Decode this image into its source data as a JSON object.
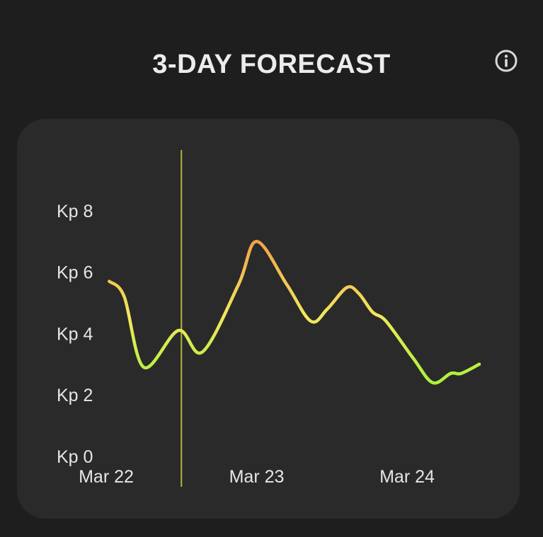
{
  "header": {
    "title": "3-DAY FORECAST",
    "info_icon": "info-icon"
  },
  "chart_data": {
    "type": "line",
    "title": "",
    "xlabel": "",
    "ylabel": "",
    "ylim": [
      0,
      9
    ],
    "y_ticks": [
      0,
      2,
      4,
      6,
      8
    ],
    "y_tick_labels": [
      "Kp 0",
      "Kp 2",
      "Kp 4",
      "Kp 6",
      "Kp 8"
    ],
    "x_tick_labels": [
      "Mar 22",
      "Mar 23",
      "Mar 24"
    ],
    "x_unit": "days since Mar 22",
    "current_time_x": 0.5,
    "series": [
      {
        "values": [
          {
            "x": 0.02,
            "y": 5.7
          },
          {
            "x": 0.12,
            "y": 5.2
          },
          {
            "x": 0.25,
            "y": 2.9
          },
          {
            "x": 0.48,
            "y": 4.1
          },
          {
            "x": 0.64,
            "y": 3.4
          },
          {
            "x": 0.88,
            "y": 5.6
          },
          {
            "x": 1.0,
            "y": 7.0
          },
          {
            "x": 1.2,
            "y": 5.6
          },
          {
            "x": 1.36,
            "y": 4.4
          },
          {
            "x": 1.47,
            "y": 4.8
          },
          {
            "x": 1.6,
            "y": 5.5
          },
          {
            "x": 1.68,
            "y": 5.3
          },
          {
            "x": 1.77,
            "y": 4.7
          },
          {
            "x": 1.86,
            "y": 4.4
          },
          {
            "x": 2.04,
            "y": 3.2
          },
          {
            "x": 2.17,
            "y": 2.4
          },
          {
            "x": 2.29,
            "y": 2.7
          },
          {
            "x": 2.36,
            "y": 2.7
          },
          {
            "x": 2.48,
            "y": 3.0
          }
        ]
      }
    ],
    "colors": {
      "low": "#a8f23a",
      "mid": "#f2e85c",
      "high": "#f2a14a",
      "now_line": "#b8b43a",
      "card": "#2a2a2a",
      "background": "#1e1e1e"
    },
    "grid": false,
    "legend": "none"
  }
}
